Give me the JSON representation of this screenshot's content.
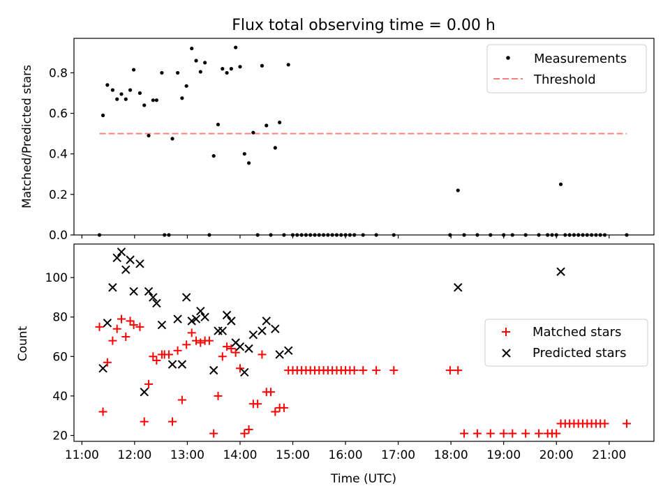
{
  "title": "Flux total observing time = 0.00 h",
  "colors": {
    "measurements": "#000000",
    "threshold": "#ff7f7f",
    "matched": "#ff0000",
    "predicted": "#000000",
    "axes": "#000000"
  },
  "chart_data": [
    {
      "type": "scatter",
      "panel": "top",
      "ylabel": "Matched/Predicted stars",
      "xlim": [
        "10:51",
        "21:51"
      ],
      "ylim": [
        0,
        0.97
      ],
      "yticks": [
        0.0,
        0.2,
        0.4,
        0.6,
        0.8
      ],
      "ytick_labels": [
        "0.0",
        "0.2",
        "0.4",
        "0.6",
        "0.8"
      ],
      "legend": {
        "placement": "top-right",
        "entries": [
          "Measurements",
          "Threshold"
        ]
      },
      "threshold": {
        "name": "Threshold",
        "value": 0.5,
        "x_range": [
          "11:20",
          "21:20"
        ],
        "style": "dashed"
      },
      "series": [
        {
          "name": "Measurements",
          "marker": "dot",
          "points": [
            [
              "11:20",
              0.0
            ],
            [
              "11:24",
              0.59
            ],
            [
              "11:29",
              0.74
            ],
            [
              "11:35",
              0.715
            ],
            [
              "11:40",
              0.67
            ],
            [
              "11:45",
              0.695
            ],
            [
              "11:50",
              0.67
            ],
            [
              "11:55",
              0.715
            ],
            [
              "11:59",
              0.815
            ],
            [
              "12:06",
              0.7
            ],
            [
              "12:11",
              0.64
            ],
            [
              "12:16",
              0.49
            ],
            [
              "12:21",
              0.665
            ],
            [
              "12:25",
              0.665
            ],
            [
              "12:31",
              0.8
            ],
            [
              "12:34",
              0.0
            ],
            [
              "12:39",
              0.0
            ],
            [
              "12:43",
              0.475
            ],
            [
              "12:49",
              0.8
            ],
            [
              "12:54",
              0.675
            ],
            [
              "12:59",
              0.735
            ],
            [
              "13:05",
              0.92
            ],
            [
              "13:10",
              0.86
            ],
            [
              "13:15",
              0.805
            ],
            [
              "13:20",
              0.85
            ],
            [
              "13:25",
              0.0
            ],
            [
              "13:30",
              0.39
            ],
            [
              "13:35",
              0.545
            ],
            [
              "13:40",
              0.82
            ],
            [
              "13:45",
              0.8
            ],
            [
              "13:50",
              0.82
            ],
            [
              "13:55",
              0.925
            ],
            [
              "14:00",
              0.83
            ],
            [
              "14:05",
              0.4
            ],
            [
              "14:10",
              0.355
            ],
            [
              "14:15",
              0.505
            ],
            [
              "14:20",
              0.0
            ],
            [
              "14:25",
              0.835
            ],
            [
              "14:30",
              0.54
            ],
            [
              "14:35",
              0.0
            ],
            [
              "14:40",
              0.43
            ],
            [
              "14:45",
              0.555
            ],
            [
              "14:50",
              0.0
            ],
            [
              "14:55",
              0.84
            ],
            [
              "15:00",
              0.0
            ],
            [
              "15:05",
              0.0
            ],
            [
              "15:10",
              0.0
            ],
            [
              "15:15",
              0.0
            ],
            [
              "15:20",
              0.0
            ],
            [
              "15:25",
              0.0
            ],
            [
              "15:30",
              0.0
            ],
            [
              "15:35",
              0.0
            ],
            [
              "15:40",
              0.0
            ],
            [
              "15:45",
              0.0
            ],
            [
              "15:50",
              0.0
            ],
            [
              "15:55",
              0.0
            ],
            [
              "16:00",
              0.0
            ],
            [
              "16:05",
              0.0
            ],
            [
              "16:10",
              0.0
            ],
            [
              "16:20",
              0.0
            ],
            [
              "16:35",
              0.0
            ],
            [
              "16:55",
              0.0
            ],
            [
              "17:59",
              0.0
            ],
            [
              "18:08",
              0.22
            ],
            [
              "18:15",
              0.0
            ],
            [
              "18:30",
              0.0
            ],
            [
              "18:45",
              0.0
            ],
            [
              "19:00",
              0.0
            ],
            [
              "19:10",
              0.0
            ],
            [
              "19:25",
              0.0
            ],
            [
              "19:40",
              0.0
            ],
            [
              "19:50",
              0.0
            ],
            [
              "19:55",
              0.0
            ],
            [
              "20:00",
              0.0
            ],
            [
              "20:05",
              0.25
            ],
            [
              "20:10",
              0.0
            ],
            [
              "20:15",
              0.0
            ],
            [
              "20:20",
              0.0
            ],
            [
              "20:25",
              0.0
            ],
            [
              "20:30",
              0.0
            ],
            [
              "20:35",
              0.0
            ],
            [
              "20:40",
              0.0
            ],
            [
              "20:45",
              0.0
            ],
            [
              "20:50",
              0.0
            ],
            [
              "20:55",
              0.0
            ],
            [
              "21:20",
              0.0
            ]
          ]
        }
      ]
    },
    {
      "type": "scatter",
      "panel": "bottom",
      "xlabel": "Time (UTC)",
      "ylabel": "Count",
      "xlim": [
        "10:51",
        "21:51"
      ],
      "ylim": [
        17,
        117
      ],
      "xticks": [
        "11:00",
        "12:00",
        "13:00",
        "14:00",
        "15:00",
        "16:00",
        "17:00",
        "18:00",
        "19:00",
        "20:00",
        "21:00"
      ],
      "yticks": [
        20,
        40,
        60,
        80,
        100
      ],
      "ytick_labels": [
        "20",
        "40",
        "60",
        "80",
        "100"
      ],
      "legend": {
        "placement": "center-right",
        "entries": [
          "Matched stars",
          "Predicted stars"
        ]
      },
      "series": [
        {
          "name": "Matched stars",
          "marker": "plus",
          "points": [
            [
              "11:20",
              75
            ],
            [
              "11:24",
              32
            ],
            [
              "11:29",
              57
            ],
            [
              "11:35",
              68
            ],
            [
              "11:40",
              74
            ],
            [
              "11:45",
              79
            ],
            [
              "11:50",
              70
            ],
            [
              "11:55",
              78
            ],
            [
              "11:59",
              76
            ],
            [
              "12:06",
              75
            ],
            [
              "12:11",
              27
            ],
            [
              "12:16",
              46
            ],
            [
              "12:21",
              60
            ],
            [
              "12:25",
              58
            ],
            [
              "12:31",
              61
            ],
            [
              "12:34",
              61
            ],
            [
              "12:39",
              61
            ],
            [
              "12:43",
              27
            ],
            [
              "12:49",
              63
            ],
            [
              "12:54",
              38
            ],
            [
              "12:59",
              66
            ],
            [
              "13:05",
              72
            ],
            [
              "13:10",
              68
            ],
            [
              "13:15",
              67
            ],
            [
              "13:20",
              68
            ],
            [
              "13:25",
              68
            ],
            [
              "13:30",
              21
            ],
            [
              "13:35",
              40
            ],
            [
              "13:40",
              60
            ],
            [
              "13:45",
              65
            ],
            [
              "13:50",
              64
            ],
            [
              "13:55",
              62
            ],
            [
              "14:00",
              54
            ],
            [
              "14:05",
              21
            ],
            [
              "14:10",
              23
            ],
            [
              "14:15",
              36
            ],
            [
              "14:20",
              36
            ],
            [
              "14:25",
              61
            ],
            [
              "14:30",
              42
            ],
            [
              "14:35",
              42
            ],
            [
              "14:40",
              32
            ],
            [
              "14:45",
              34
            ],
            [
              "14:50",
              34
            ],
            [
              "14:55",
              53
            ],
            [
              "15:00",
              53
            ],
            [
              "15:05",
              53
            ],
            [
              "15:10",
              53
            ],
            [
              "15:15",
              53
            ],
            [
              "15:20",
              53
            ],
            [
              "15:25",
              53
            ],
            [
              "15:30",
              53
            ],
            [
              "15:35",
              53
            ],
            [
              "15:40",
              53
            ],
            [
              "15:45",
              53
            ],
            [
              "15:50",
              53
            ],
            [
              "15:55",
              53
            ],
            [
              "16:00",
              53
            ],
            [
              "16:05",
              53
            ],
            [
              "16:10",
              53
            ],
            [
              "16:20",
              53
            ],
            [
              "16:35",
              53
            ],
            [
              "16:55",
              53
            ],
            [
              "17:59",
              53
            ],
            [
              "18:08",
              53
            ],
            [
              "18:15",
              21
            ],
            [
              "18:30",
              21
            ],
            [
              "18:45",
              21
            ],
            [
              "19:00",
              21
            ],
            [
              "19:10",
              21
            ],
            [
              "19:25",
              21
            ],
            [
              "19:40",
              21
            ],
            [
              "19:50",
              21
            ],
            [
              "19:55",
              21
            ],
            [
              "20:00",
              21
            ],
            [
              "20:05",
              26
            ],
            [
              "20:10",
              26
            ],
            [
              "20:15",
              26
            ],
            [
              "20:20",
              26
            ],
            [
              "20:25",
              26
            ],
            [
              "20:30",
              26
            ],
            [
              "20:35",
              26
            ],
            [
              "20:40",
              26
            ],
            [
              "20:45",
              26
            ],
            [
              "20:50",
              26
            ],
            [
              "20:55",
              26
            ],
            [
              "21:20",
              26
            ]
          ]
        },
        {
          "name": "Predicted stars",
          "marker": "x",
          "points": [
            [
              "11:24",
              54
            ],
            [
              "11:29",
              77
            ],
            [
              "11:35",
              95
            ],
            [
              "11:40",
              110
            ],
            [
              "11:45",
              113
            ],
            [
              "11:50",
              104
            ],
            [
              "11:55",
              109
            ],
            [
              "11:59",
              93
            ],
            [
              "12:06",
              107
            ],
            [
              "12:11",
              42
            ],
            [
              "12:16",
              93
            ],
            [
              "12:21",
              90
            ],
            [
              "12:25",
              87
            ],
            [
              "12:31",
              76
            ],
            [
              "12:43",
              56
            ],
            [
              "12:49",
              79
            ],
            [
              "12:54",
              56
            ],
            [
              "12:59",
              90
            ],
            [
              "13:05",
              78
            ],
            [
              "13:10",
              79
            ],
            [
              "13:15",
              83
            ],
            [
              "13:20",
              80
            ],
            [
              "13:30",
              53
            ],
            [
              "13:35",
              73
            ],
            [
              "13:40",
              73
            ],
            [
              "13:45",
              81
            ],
            [
              "13:50",
              78
            ],
            [
              "13:55",
              67
            ],
            [
              "14:00",
              65
            ],
            [
              "14:05",
              52
            ],
            [
              "14:10",
              64
            ],
            [
              "14:15",
              71
            ],
            [
              "14:25",
              73
            ],
            [
              "14:30",
              78
            ],
            [
              "14:40",
              74
            ],
            [
              "14:45",
              61
            ],
            [
              "14:55",
              63
            ],
            [
              "18:08",
              95
            ],
            [
              "20:05",
              103
            ]
          ]
        }
      ]
    }
  ]
}
